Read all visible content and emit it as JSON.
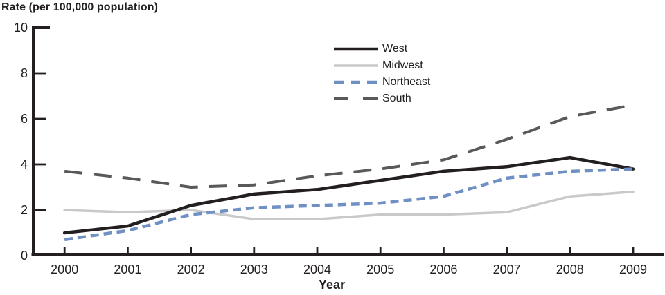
{
  "chart_data": {
    "type": "line",
    "title": "Rate (per 100,000 population)",
    "xlabel": "Year",
    "ylabel": "",
    "x": [
      2000,
      2001,
      2002,
      2003,
      2004,
      2005,
      2006,
      2007,
      2008,
      2009
    ],
    "series": [
      {
        "name": "West",
        "color": "#231f20",
        "line_style": "solid",
        "values": [
          1.0,
          1.3,
          2.2,
          2.7,
          2.9,
          3.3,
          3.7,
          3.9,
          4.3,
          3.8
        ]
      },
      {
        "name": "Midwest",
        "color": "#c8c9cb",
        "line_style": "solid-thin",
        "values": [
          2.0,
          1.9,
          2.0,
          1.6,
          1.6,
          1.8,
          1.8,
          1.9,
          2.6,
          2.8
        ]
      },
      {
        "name": "Northeast",
        "color": "#7090c4",
        "line_style": "short-dash",
        "values": [
          0.7,
          1.1,
          1.8,
          2.1,
          2.2,
          2.3,
          2.6,
          3.4,
          3.7,
          3.8
        ]
      },
      {
        "name": "South",
        "color": "#58595b",
        "line_style": "long-dash",
        "values": [
          3.7,
          3.4,
          3.0,
          3.1,
          3.5,
          3.8,
          4.2,
          5.1,
          6.1,
          6.6
        ]
      }
    ],
    "ylim": [
      0,
      10
    ],
    "yticks": [
      0,
      2,
      4,
      6,
      8,
      10
    ],
    "grid": false,
    "legend_position": "top-center",
    "axis_color": "#231f20"
  }
}
